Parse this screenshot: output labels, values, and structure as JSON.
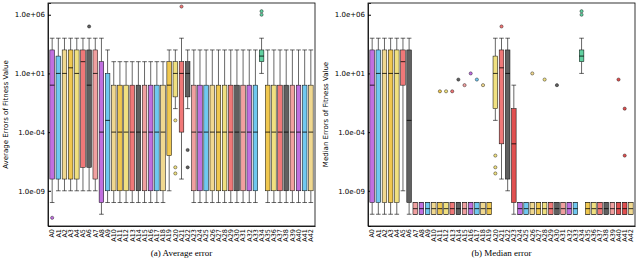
{
  "chart_data": [
    {
      "type": "box",
      "title": "(a) Average error",
      "ylabel": "Average Errors of Fitness Value",
      "log": "y",
      "ylim": [
        1e-12,
        10000000.0
      ],
      "yticks": [
        {
          "value": 1e-09,
          "label": "1.0e-09"
        },
        {
          "value": 0.0001,
          "label": "1.0e-04"
        },
        {
          "value": 10,
          "label": "1.0e+01"
        },
        {
          "value": 1000000,
          "label": "1.0e+06"
        }
      ],
      "categories": [
        "A0",
        "A1",
        "A2",
        "A3",
        "A4",
        "A5",
        "A6",
        "A7",
        "A8",
        "A9",
        "A10",
        "A11",
        "A12",
        "A13",
        "A14",
        "A15",
        "A16",
        "A17",
        "A18",
        "A19",
        "A20",
        "A21",
        "A22",
        "A23",
        "A24",
        "A25",
        "A26",
        "A27",
        "A28",
        "A29",
        "A30",
        "A31",
        "A32",
        "A33",
        "A34",
        "A35",
        "A36",
        "A37",
        "A38",
        "A39",
        "A40",
        "A41",
        "A42"
      ],
      "colors": [
        "#c070e0",
        "#70c8f0",
        "#f0d890",
        "#f0c850",
        "#f0e080",
        "#f07878",
        "#606060",
        "#f0a0a0",
        "#c070e0",
        "#70c8f0",
        "#f0d890",
        "#f0c850",
        "#f0e080",
        "#f07878",
        "#606060",
        "#f0a0a0",
        "#c070e0",
        "#70c8f0",
        "#f0d890",
        "#f0c850",
        "#f0e080",
        "#f07878",
        "#606060",
        "#f0a0a0",
        "#c070e0",
        "#70c8f0",
        "#f0d890",
        "#f0c850",
        "#f0e080",
        "#f07878",
        "#606060",
        "#f0a0a0",
        "#c070e0",
        "#70c8f0",
        "#60d0a0",
        "#f0c850",
        "#f0e080",
        "#f07878",
        "#606060",
        "#f0a0a0",
        "#c070e0",
        "#70c8f0",
        "#f0d890"
      ],
      "min": [
        1e-10,
        1e-09,
        1e-09,
        1e-09,
        1e-09,
        1e-09,
        1e-09,
        1e-09,
        1e-11,
        1e-10,
        1e-10,
        1e-10,
        1e-10,
        1e-10,
        1e-10,
        1e-10,
        1e-10,
        1e-10,
        1e-10,
        1e-09,
        0.01,
        1e-08,
        0.01,
        1e-10,
        1e-10,
        1e-10,
        1e-10,
        1e-10,
        1e-10,
        1e-10,
        1e-10,
        1e-10,
        1e-10,
        1e-10,
        10,
        1e-10,
        1e-10,
        1e-10,
        1e-10,
        1e-10,
        1e-10,
        1e-10,
        1e-10
      ],
      "q1": [
        1e-08,
        1e-08,
        1e-08,
        1e-08,
        1e-08,
        1e-07,
        1e-07,
        1e-08,
        1e-10,
        1e-09,
        1e-09,
        1e-09,
        1e-09,
        1e-09,
        1e-09,
        1e-09,
        1e-09,
        1e-09,
        1e-09,
        1e-06,
        0.1,
        0.0001,
        0.1,
        1e-09,
        1e-09,
        1e-09,
        1e-09,
        1e-09,
        1e-09,
        1e-09,
        1e-09,
        1e-09,
        1e-09,
        1e-09,
        100,
        1e-09,
        1e-09,
        1e-09,
        1e-09,
        1e-09,
        1e-09,
        1e-09,
        1e-09
      ],
      "median": [
        1,
        10,
        10,
        30,
        10,
        100,
        1,
        10,
        0.0001,
        0.001,
        0.0001,
        0.0001,
        0.0001,
        0.0001,
        0.0001,
        0.0001,
        0.0001,
        0.0001,
        0.0001,
        1,
        10,
        10,
        10,
        0.0001,
        0.0001,
        0.0001,
        0.0001,
        0.0001,
        0.0001,
        0.0001,
        0.0001,
        0.0001,
        0.0001,
        0.0001,
        300,
        0.0001,
        0.0001,
        0.0001,
        0.0001,
        0.0001,
        0.0001,
        0.0001,
        0.0001
      ],
      "q3": [
        1000,
        300,
        1000,
        1000,
        1000,
        1000,
        1000,
        1000,
        100,
        10,
        1,
        1,
        1,
        1,
        1,
        1,
        1,
        1,
        1,
        100,
        100,
        100,
        100,
        1,
        1,
        1,
        1,
        1,
        1,
        1,
        1,
        1,
        1,
        1,
        1000,
        1,
        1,
        1,
        1,
        1,
        1,
        1,
        1
      ],
      "max": [
        10000,
        10000,
        10000,
        10000,
        10000,
        10000,
        10000,
        10000,
        10000,
        1000,
        100,
        100,
        100,
        100,
        100,
        100,
        100,
        100,
        100,
        1000,
        1000,
        10000,
        1000,
        1000,
        1000,
        1000,
        1000,
        1000,
        1000,
        1000,
        1000,
        1000,
        1000,
        1000,
        10000,
        1000,
        1000,
        1000,
        1000,
        1000,
        1000,
        1000,
        1000
      ],
      "outliers": [
        [
          5e-12
        ],
        [],
        [],
        [],
        [],
        [],
        [
          100000
        ],
        [],
        [],
        [],
        [],
        [],
        [],
        [],
        [],
        [],
        [],
        [],
        [],
        [],
        [
          0.001,
          1e-07,
          3e-08
        ],
        [
          5000000
        ],
        [
          3e-06,
          1e-07
        ],
        [],
        [],
        [],
        [],
        [],
        [],
        [],
        [],
        [],
        [],
        [],
        [
          1000000,
          2000000
        ],
        [],
        [],
        [],
        [],
        [],
        [],
        [],
        []
      ]
    },
    {
      "type": "box",
      "title": "(b) Median error",
      "ylabel": "Median Errors of Fitness Value",
      "log": "y",
      "ylim": [
        1e-12,
        10000000.0
      ],
      "yticks": [
        {
          "value": 1e-09,
          "label": "1.0e-09"
        },
        {
          "value": 0.0001,
          "label": "1.0e-04"
        },
        {
          "value": 10,
          "label": "1.0e+01"
        },
        {
          "value": 1000000,
          "label": "1.0e+06"
        }
      ],
      "categories": [
        "A0",
        "A1",
        "A2",
        "A3",
        "A4",
        "A5",
        "A6",
        "A7",
        "A8",
        "A9",
        "A10",
        "A11",
        "A12",
        "A13",
        "A14",
        "A15",
        "A16",
        "A17",
        "A18",
        "A19",
        "A20",
        "A21",
        "A22",
        "A23",
        "A24",
        "A25",
        "A26",
        "A27",
        "A28",
        "A29",
        "A30",
        "A31",
        "A32",
        "A33",
        "A34",
        "A35",
        "A36",
        "A37",
        "A38",
        "A39",
        "A40",
        "A41",
        "A42"
      ],
      "colors": [
        "#c070e0",
        "#70c8f0",
        "#f0d890",
        "#f0c850",
        "#f0e080",
        "#f07878",
        "#606060",
        "#f0a0a0",
        "#c070e0",
        "#70c8f0",
        "#f0d890",
        "#f0c850",
        "#f0e080",
        "#f07878",
        "#606060",
        "#f0a0a0",
        "#c070e0",
        "#70c8f0",
        "#f0d890",
        "#f0c850",
        "#f0e080",
        "#f07878",
        "#606060",
        "#e05050",
        "#c070e0",
        "#70c8f0",
        "#f0d890",
        "#f0c850",
        "#f0e080",
        "#f07878",
        "#606060",
        "#f0a0a0",
        "#c070e0",
        "#70c8f0",
        "#60d0a0",
        "#f0c850",
        "#f0e080",
        "#f07878",
        "#606060",
        "#f0a0a0",
        "#e05050",
        "#e05050",
        "#f0d890"
      ],
      "min": [
        1e-11,
        1e-11,
        1e-11,
        1e-11,
        1e-11,
        1e-09,
        1e-11,
        1e-11,
        1e-11,
        1e-11,
        1e-11,
        1e-11,
        1e-11,
        1e-11,
        1e-11,
        1e-11,
        1e-11,
        1e-11,
        1e-11,
        1e-11,
        0.001,
        1e-08,
        1e-09,
        1e-11,
        1e-11,
        1e-11,
        1e-11,
        1e-11,
        1e-11,
        1e-11,
        1e-11,
        1e-11,
        1e-11,
        1e-11,
        10,
        1e-11,
        1e-11,
        1e-11,
        1e-11,
        1e-11,
        1e-11,
        1e-11,
        1e-11
      ],
      "q1": [
        1e-10,
        1e-10,
        1e-10,
        1e-10,
        1e-10,
        1,
        1e-10,
        1e-11,
        1e-11,
        1e-11,
        1e-11,
        1e-11,
        1e-11,
        1e-11,
        1e-11,
        1e-11,
        1e-11,
        1e-11,
        1e-11,
        1e-11,
        0.01,
        1e-05,
        1e-08,
        1e-10,
        1e-11,
        1e-11,
        1e-11,
        1e-11,
        1e-11,
        1e-11,
        1e-11,
        1e-11,
        1e-11,
        1e-11,
        100,
        1e-11,
        1e-11,
        1e-11,
        1e-11,
        1e-11,
        1e-11,
        1e-11,
        1e-11
      ],
      "median": [
        1,
        10,
        10,
        10,
        10,
        100,
        0.001,
        3e-11,
        3e-11,
        3e-11,
        3e-11,
        3e-11,
        3e-11,
        3e-11,
        3e-11,
        3e-11,
        3e-11,
        3e-11,
        3e-11,
        3e-11,
        10,
        30,
        10,
        1e-05,
        3e-11,
        3e-11,
        3e-11,
        3e-11,
        3e-11,
        3e-11,
        3e-11,
        3e-11,
        3e-11,
        3e-11,
        300,
        3e-11,
        3e-11,
        3e-11,
        3e-11,
        3e-11,
        3e-11,
        3e-11,
        3e-11
      ],
      "q3": [
        1000,
        1000,
        1000,
        1000,
        1000,
        1000,
        1000,
        1e-10,
        1e-10,
        1e-10,
        1e-10,
        1e-10,
        1e-10,
        1e-10,
        1e-10,
        1e-10,
        1e-10,
        1e-10,
        1e-10,
        1e-10,
        300,
        1000,
        1000,
        0.01,
        1e-10,
        1e-10,
        1e-10,
        1e-10,
        1e-10,
        1e-10,
        1e-10,
        1e-10,
        1e-10,
        1e-10,
        1000,
        1e-10,
        1e-10,
        1e-10,
        1e-10,
        1e-10,
        1e-10,
        1e-10,
        1e-10
      ],
      "max": [
        10000,
        10000,
        10000,
        10000,
        10000,
        10000,
        10000,
        1e-10,
        1e-10,
        1e-10,
        1e-10,
        1e-10,
        1e-10,
        1e-10,
        1e-10,
        1e-10,
        1e-10,
        1e-10,
        1e-10,
        1e-10,
        10000,
        10000,
        10000,
        1,
        1e-10,
        1e-10,
        1e-10,
        1e-10,
        1e-10,
        1e-10,
        1e-10,
        1e-10,
        1e-10,
        1e-10,
        10000,
        1e-10,
        1e-10,
        1e-10,
        1e-10,
        1e-10,
        1e-10,
        1e-10,
        1e-10
      ],
      "outliers": [
        [],
        [],
        [],
        [],
        [],
        [],
        [],
        [],
        [],
        [],
        [],
        [
          0.3
        ],
        [
          0.3
        ],
        [
          0.3
        ],
        [
          3
        ],
        [
          1
        ],
        [
          10
        ],
        [
          3
        ],
        [
          1
        ],
        [],
        [
          1e-06,
          1e-07,
          3e-08
        ],
        [
          100000
        ],
        [],
        [],
        [],
        [],
        [
          10
        ],
        [],
        [
          3
        ],
        [],
        [
          1
        ],
        [],
        [],
        [],
        [
          1000000,
          2000000
        ],
        [],
        [],
        [],
        [],
        [],
        [
          3
        ],
        [
          0.01,
          1e-06
        ],
        []
      ]
    }
  ]
}
